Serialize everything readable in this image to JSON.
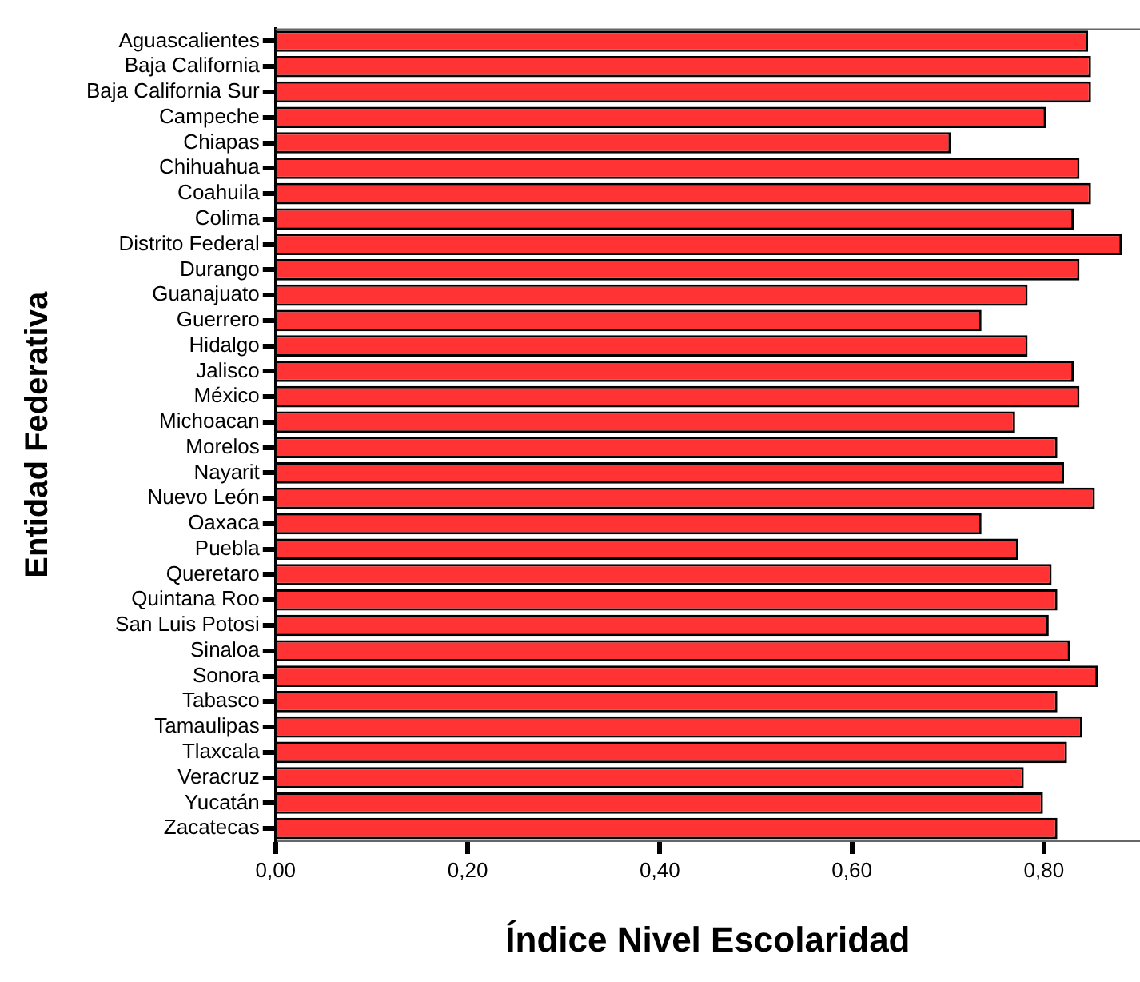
{
  "chart_data": {
    "type": "bar",
    "orientation": "horizontal",
    "xlabel": "Índice Nivel Escolaridad",
    "ylabel": "Entidad Federativa",
    "categories": [
      "Aguascalientes",
      "Baja California",
      "Baja California Sur",
      "Campeche",
      "Chiapas",
      "Chihuahua",
      "Coahuila",
      "Colima",
      "Distrito Federal",
      "Durango",
      "Guanajuato",
      "Guerrero",
      "Hidalgo",
      "Jalisco",
      "México",
      "Michoacan",
      "Morelos",
      "Nayarit",
      "Nuevo León",
      "Oaxaca",
      "Puebla",
      "Queretaro",
      "Quintana Roo",
      "San Luis Potosi",
      "Sinaloa",
      "Sonora",
      "Tabasco",
      "Tamaulipas",
      "Tlaxcala",
      "Veracruz",
      "Yucatán",
      "Zacatecas"
    ],
    "values": [
      0.846,
      0.849,
      0.849,
      0.802,
      0.703,
      0.837,
      0.849,
      0.831,
      0.881,
      0.837,
      0.783,
      0.735,
      0.783,
      0.831,
      0.837,
      0.77,
      0.814,
      0.821,
      0.853,
      0.735,
      0.773,
      0.808,
      0.814,
      0.805,
      0.827,
      0.856,
      0.814,
      0.84,
      0.824,
      0.779,
      0.799,
      0.814
    ],
    "color": "#ff3333",
    "xlim": [
      0,
      0.9
    ],
    "xticks": [
      {
        "value": 0,
        "label": "0,00"
      },
      {
        "value": 0.2,
        "label": "0,20"
      },
      {
        "value": 0.4,
        "label": "0,40"
      },
      {
        "value": 0.6,
        "label": "0,60"
      },
      {
        "value": 0.8,
        "label": "0,80"
      }
    ],
    "grid": false,
    "legend": false
  }
}
